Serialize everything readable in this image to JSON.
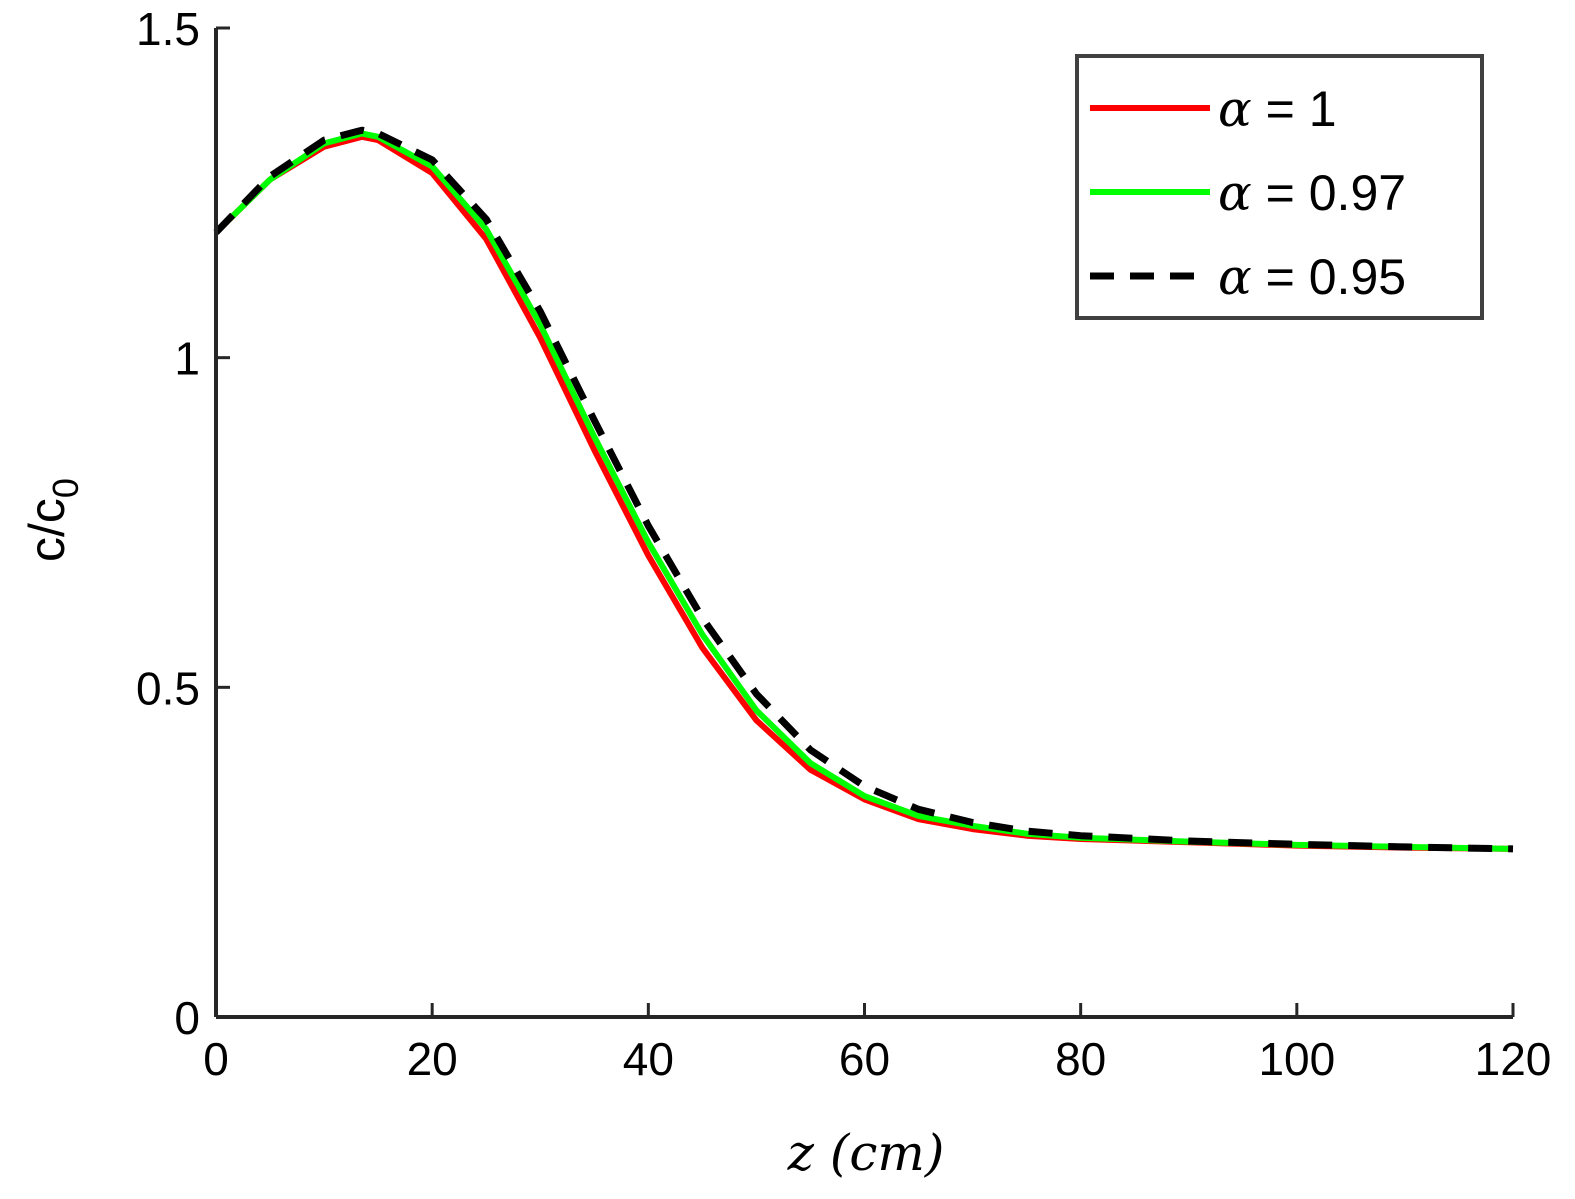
{
  "chart_data": {
    "type": "line",
    "xlabel": "z (cm)",
    "ylabel": "c/c",
    "ylabel_sub": "0",
    "xlim": [
      0,
      120
    ],
    "ylim": [
      0,
      1.5
    ],
    "xticks": [
      0,
      20,
      40,
      60,
      80,
      100,
      120
    ],
    "xtick_labels": [
      "0",
      "20",
      "40",
      "60",
      "80",
      "100",
      "120"
    ],
    "yticks": [
      0,
      0.5,
      1,
      1.5
    ],
    "ytick_labels": [
      "0",
      "0.5",
      "1",
      "1.5"
    ],
    "grid": false,
    "legend_position": "top-right",
    "x": [
      0,
      5,
      10,
      13.5,
      15,
      20,
      25,
      30,
      35,
      40,
      45,
      50,
      55,
      60,
      65,
      70,
      75,
      80,
      90,
      100,
      110,
      120
    ],
    "series": [
      {
        "name": "α = 1",
        "greek": "α",
        "value_text": "= 1",
        "color": "#ff0000",
        "dash": "solid",
        "values": [
          1.19,
          1.27,
          1.32,
          1.335,
          1.33,
          1.28,
          1.18,
          1.03,
          0.86,
          0.7,
          0.56,
          0.45,
          0.375,
          0.33,
          0.3,
          0.285,
          0.275,
          0.27,
          0.265,
          0.26,
          0.257,
          0.255
        ]
      },
      {
        "name": "α = 0.97",
        "greek": "α",
        "value_text": "= 0.97",
        "color": "#00ff00",
        "dash": "solid",
        "values": [
          1.19,
          1.27,
          1.325,
          1.34,
          1.335,
          1.29,
          1.195,
          1.05,
          0.88,
          0.72,
          0.58,
          0.465,
          0.385,
          0.335,
          0.305,
          0.29,
          0.278,
          0.272,
          0.266,
          0.261,
          0.258,
          0.255
        ]
      },
      {
        "name": "α = 0.95",
        "greek": "α",
        "value_text": "= 0.95",
        "color": "#000000",
        "dash": "dashed",
        "values": [
          1.19,
          1.275,
          1.33,
          1.345,
          1.34,
          1.3,
          1.21,
          1.07,
          0.905,
          0.745,
          0.605,
          0.49,
          0.405,
          0.35,
          0.315,
          0.295,
          0.282,
          0.275,
          0.267,
          0.262,
          0.258,
          0.255
        ]
      }
    ]
  }
}
